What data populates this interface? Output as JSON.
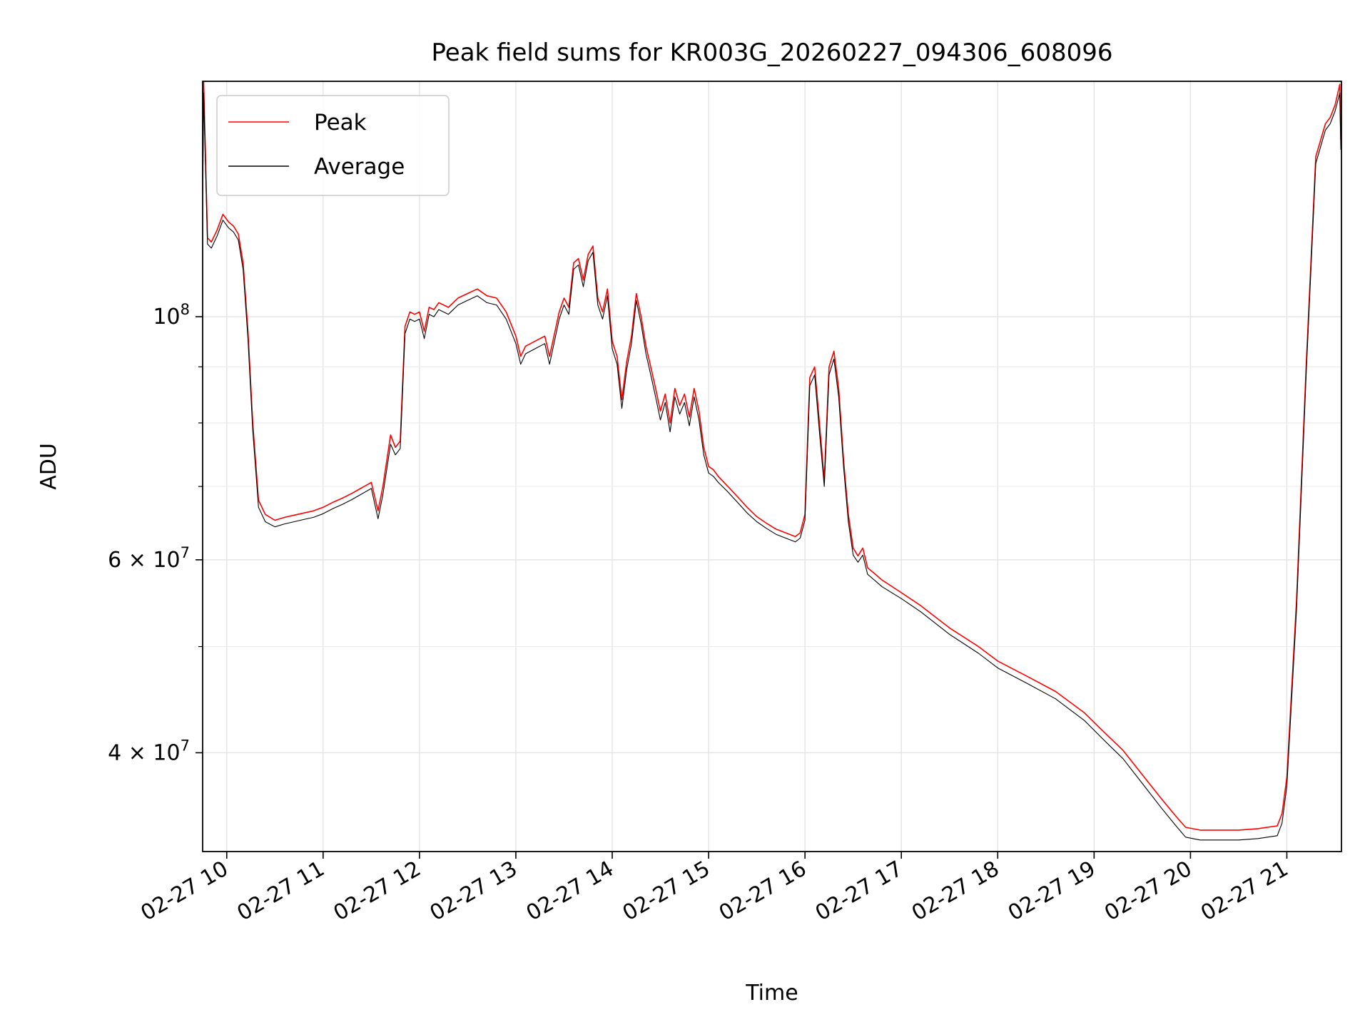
{
  "chart_data": {
    "type": "line",
    "title": "Peak field sums for KR003G_20260227_094306_608096",
    "xlabel": "Time",
    "ylabel": "ADU",
    "yscale": "log",
    "grid": true,
    "legend_position": "upper-left",
    "xlim": [
      "02-27 09:45",
      "02-27 21:34"
    ],
    "ylim": [
      32500000,
      164000000
    ],
    "x_ticks": [
      "02-27 10",
      "02-27 11",
      "02-27 12",
      "02-27 13",
      "02-27 14",
      "02-27 15",
      "02-27 16",
      "02-27 17",
      "02-27 18",
      "02-27 19",
      "02-27 20",
      "02-27 21"
    ],
    "x_tick_hours": [
      10,
      11,
      12,
      13,
      14,
      15,
      16,
      17,
      18,
      19,
      20,
      21
    ],
    "y_major_ticks": [
      {
        "value": 40000000,
        "mantissa": "4",
        "exp": "7"
      },
      {
        "value": 60000000,
        "mantissa": "6",
        "exp": "7"
      },
      {
        "value": 100000000,
        "mantissa": "",
        "exp": "8"
      }
    ],
    "y_minor_ticks": [
      50000000,
      70000000,
      80000000,
      90000000
    ],
    "series": [
      {
        "name": "Peak",
        "color": "#ff0000",
        "x_hours": [
          9.75,
          9.76,
          9.8,
          9.84,
          9.9,
          9.96,
          10.02,
          10.07,
          10.12,
          10.17,
          10.22,
          10.27,
          10.33,
          10.4,
          10.5,
          10.6,
          10.7,
          10.8,
          10.9,
          11.0,
          11.1,
          11.2,
          11.3,
          11.4,
          11.5,
          11.57,
          11.62,
          11.7,
          11.75,
          11.8,
          11.85,
          11.9,
          11.95,
          12.0,
          12.05,
          12.1,
          12.15,
          12.2,
          12.3,
          12.4,
          12.5,
          12.6,
          12.7,
          12.8,
          12.9,
          13.0,
          13.05,
          13.1,
          13.2,
          13.3,
          13.35,
          13.45,
          13.5,
          13.55,
          13.6,
          13.65,
          13.7,
          13.75,
          13.8,
          13.85,
          13.9,
          13.95,
          14.0,
          14.05,
          14.1,
          14.15,
          14.2,
          14.25,
          14.3,
          14.35,
          14.4,
          14.45,
          14.5,
          14.55,
          14.6,
          14.65,
          14.7,
          14.75,
          14.8,
          14.85,
          14.9,
          14.95,
          15.0,
          15.05,
          15.1,
          15.2,
          15.3,
          15.4,
          15.5,
          15.6,
          15.7,
          15.8,
          15.9,
          15.95,
          16.0,
          16.05,
          16.1,
          16.15,
          16.2,
          16.25,
          16.3,
          16.35,
          16.4,
          16.45,
          16.5,
          16.55,
          16.6,
          16.65,
          16.7,
          16.75,
          16.8,
          17.0,
          17.2,
          17.5,
          17.8,
          18.0,
          18.3,
          18.6,
          18.9,
          19.1,
          19.3,
          19.5,
          19.7,
          19.85,
          19.95,
          20.1,
          20.3,
          20.5,
          20.7,
          20.9,
          20.95,
          21.0,
          21.1,
          21.2,
          21.3,
          21.4,
          21.45,
          21.5,
          21.55,
          21.56
        ],
        "values": [
          130000000,
          164000000,
          118000000,
          117000000,
          120000000,
          124000000,
          122000000,
          121000000,
          119000000,
          112000000,
          97000000,
          80000000,
          68000000,
          66000000,
          65200000,
          65600000,
          65900000,
          66200000,
          66500000,
          67000000,
          67700000,
          68300000,
          69000000,
          69800000,
          70600000,
          66500000,
          70000000,
          78000000,
          76000000,
          77000000,
          98000000,
          101000000,
          100500000,
          101000000,
          97000000,
          102000000,
          101500000,
          103000000,
          102000000,
          104000000,
          105000000,
          106000000,
          104500000,
          104000000,
          101000000,
          96000000,
          92000000,
          94000000,
          95000000,
          96000000,
          92000000,
          101000000,
          104000000,
          102000000,
          112000000,
          113000000,
          108000000,
          114000000,
          116000000,
          104000000,
          101000000,
          106000000,
          95000000,
          92000000,
          84000000,
          91000000,
          96000000,
          105000000,
          100000000,
          94000000,
          90000000,
          86000000,
          82000000,
          85000000,
          80000000,
          86000000,
          83000000,
          85000000,
          81000000,
          86000000,
          82000000,
          76000000,
          73000000,
          72500000,
          71500000,
          70000000,
          68500000,
          67000000,
          65700000,
          64800000,
          64000000,
          63500000,
          63000000,
          63500000,
          66000000,
          88000000,
          90000000,
          80000000,
          71000000,
          90000000,
          93000000,
          86000000,
          74000000,
          66000000,
          61500000,
          60500000,
          61500000,
          59000000,
          58500000,
          58000000,
          57500000,
          56000000,
          54500000,
          52000000,
          50000000,
          48500000,
          47000000,
          45500000,
          43500000,
          41800000,
          40200000,
          38200000,
          36300000,
          35000000,
          34200000,
          34000000,
          34000000,
          34000000,
          34100000,
          34300000,
          35200000,
          38000000,
          55000000,
          90000000,
          140000000,
          150000000,
          152000000,
          156000000,
          163000000,
          145000000
        ],
        "stroke_width": 1.6
      },
      {
        "name": "Average",
        "color": "#000000",
        "x_hours": [
          9.75,
          9.76,
          9.8,
          9.84,
          9.9,
          9.96,
          10.02,
          10.07,
          10.12,
          10.17,
          10.22,
          10.27,
          10.33,
          10.4,
          10.5,
          10.6,
          10.7,
          10.8,
          10.9,
          11.0,
          11.1,
          11.2,
          11.3,
          11.4,
          11.5,
          11.57,
          11.62,
          11.7,
          11.75,
          11.8,
          11.85,
          11.9,
          11.95,
          12.0,
          12.05,
          12.1,
          12.15,
          12.2,
          12.3,
          12.4,
          12.5,
          12.6,
          12.7,
          12.8,
          12.9,
          13.0,
          13.05,
          13.1,
          13.2,
          13.3,
          13.35,
          13.45,
          13.5,
          13.55,
          13.6,
          13.65,
          13.7,
          13.75,
          13.8,
          13.85,
          13.9,
          13.95,
          14.0,
          14.05,
          14.1,
          14.15,
          14.2,
          14.25,
          14.3,
          14.35,
          14.4,
          14.45,
          14.5,
          14.55,
          14.6,
          14.65,
          14.7,
          14.75,
          14.8,
          14.85,
          14.9,
          14.95,
          15.0,
          15.05,
          15.1,
          15.2,
          15.3,
          15.4,
          15.5,
          15.6,
          15.7,
          15.8,
          15.9,
          15.95,
          16.0,
          16.05,
          16.1,
          16.15,
          16.2,
          16.25,
          16.3,
          16.35,
          16.4,
          16.45,
          16.5,
          16.55,
          16.6,
          16.65,
          16.7,
          16.75,
          16.8,
          17.0,
          17.2,
          17.5,
          17.8,
          18.0,
          18.3,
          18.6,
          18.9,
          19.1,
          19.3,
          19.5,
          19.7,
          19.85,
          19.95,
          20.1,
          20.3,
          20.5,
          20.7,
          20.9,
          20.95,
          21.0,
          21.1,
          21.2,
          21.3,
          21.4,
          21.45,
          21.5,
          21.55,
          21.56
        ],
        "values": [
          128000000,
          160000000,
          116500000,
          115500000,
          118500000,
          122500000,
          120500000,
          119500000,
          117500000,
          110500000,
          95500000,
          78800000,
          67000000,
          65000000,
          64300000,
          64700000,
          65000000,
          65300000,
          65600000,
          66100000,
          66800000,
          67400000,
          68100000,
          68900000,
          69700000,
          65400000,
          68800000,
          76500000,
          74800000,
          75800000,
          96500000,
          99500000,
          99000000,
          99500000,
          95500000,
          100500000,
          100000000,
          101500000,
          100500000,
          102500000,
          103500000,
          104500000,
          103000000,
          102500000,
          99500000,
          94500000,
          90500000,
          92500000,
          93500000,
          94500000,
          90500000,
          99500000,
          102500000,
          100500000,
          110500000,
          111500000,
          106500000,
          112500000,
          114500000,
          102500000,
          99500000,
          104500000,
          93500000,
          90500000,
          82500000,
          89500000,
          94500000,
          103500000,
          98500000,
          92500000,
          88500000,
          84500000,
          80500000,
          83500000,
          78500000,
          84500000,
          81500000,
          83500000,
          79500000,
          84500000,
          80500000,
          74800000,
          72000000,
          71500000,
          70600000,
          69200000,
          67700000,
          66200000,
          65000000,
          64100000,
          63300000,
          62800000,
          62300000,
          62800000,
          65200000,
          86500000,
          88500000,
          78500000,
          70000000,
          88500000,
          91500000,
          84500000,
          73000000,
          65000000,
          60600000,
          59700000,
          60600000,
          58200000,
          57700000,
          57200000,
          56700000,
          55300000,
          53800000,
          51300000,
          49300000,
          47800000,
          46300000,
          44800000,
          42800000,
          41100000,
          39500000,
          37500000,
          35600000,
          34300000,
          33500000,
          33300000,
          33300000,
          33300000,
          33400000,
          33600000,
          34500000,
          37300000,
          54000000,
          88500000,
          138000000,
          148000000,
          150000000,
          154000000,
          160000000,
          142000000
        ],
        "stroke_width": 1.1
      }
    ]
  }
}
